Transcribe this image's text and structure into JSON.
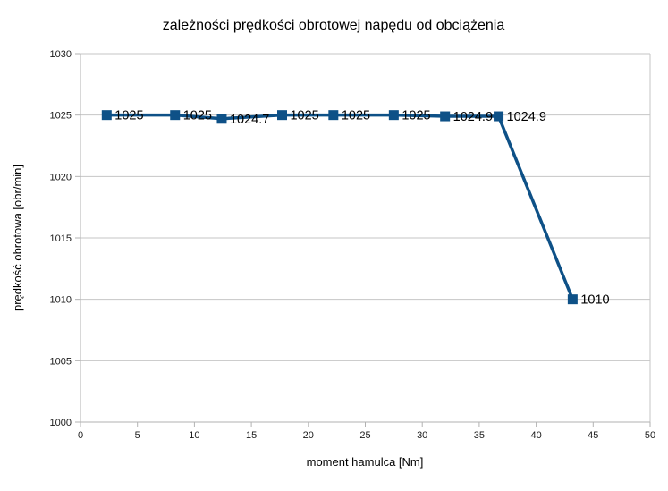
{
  "chart_data": {
    "type": "line",
    "title": "zależności prędkości obrotowej napędu od obciążenia",
    "xlabel": "moment hamulca [Nm]",
    "ylabel": "prędkość obrotowa [obr/min]",
    "x": [
      2.3,
      8.3,
      12.4,
      17.7,
      22.2,
      27.5,
      32.0,
      36.7,
      43.2
    ],
    "y": [
      1025,
      1025,
      1024.7,
      1025,
      1025,
      1025,
      1024.9,
      1024.9,
      1010
    ],
    "point_labels": [
      "1025",
      "1025",
      "1024.7",
      "1025",
      "1025",
      "1025",
      "1024.9",
      "1024.9",
      "1010"
    ],
    "xlim": [
      0,
      50
    ],
    "ylim": [
      1000,
      1030
    ],
    "x_ticks": [
      0,
      5,
      10,
      15,
      20,
      25,
      30,
      35,
      40,
      45,
      50
    ],
    "y_ticks": [
      1000,
      1005,
      1010,
      1015,
      1020,
      1025,
      1030
    ],
    "grid": "horizontal-major",
    "legend": "none",
    "marker": "square",
    "series_color": "#0e5187",
    "grid_color": "#c6c6c6",
    "axis_color": "#b2b2b2",
    "text_color": "#000000"
  }
}
